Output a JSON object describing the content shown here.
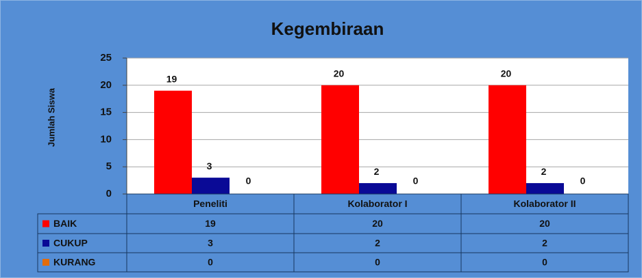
{
  "chart_data": {
    "type": "bar",
    "title": "Kegembiraan",
    "y_label": "Jumlah Siswa",
    "categories": [
      "Peneliti",
      "Kolaborator I",
      "Kolaborator II"
    ],
    "series": [
      {
        "name": "BAIK",
        "color": "#ff0000",
        "values": [
          19,
          20,
          20
        ]
      },
      {
        "name": "CUKUP",
        "color": "#0a0a96",
        "values": [
          3,
          2,
          2
        ]
      },
      {
        "name": "KURANG",
        "color": "#e46c0a",
        "values": [
          0,
          0,
          0
        ]
      }
    ],
    "ylim": [
      0,
      25
    ],
    "yticks": [
      0,
      5,
      10,
      15,
      20,
      25
    ],
    "grid": true,
    "data_table": true
  }
}
